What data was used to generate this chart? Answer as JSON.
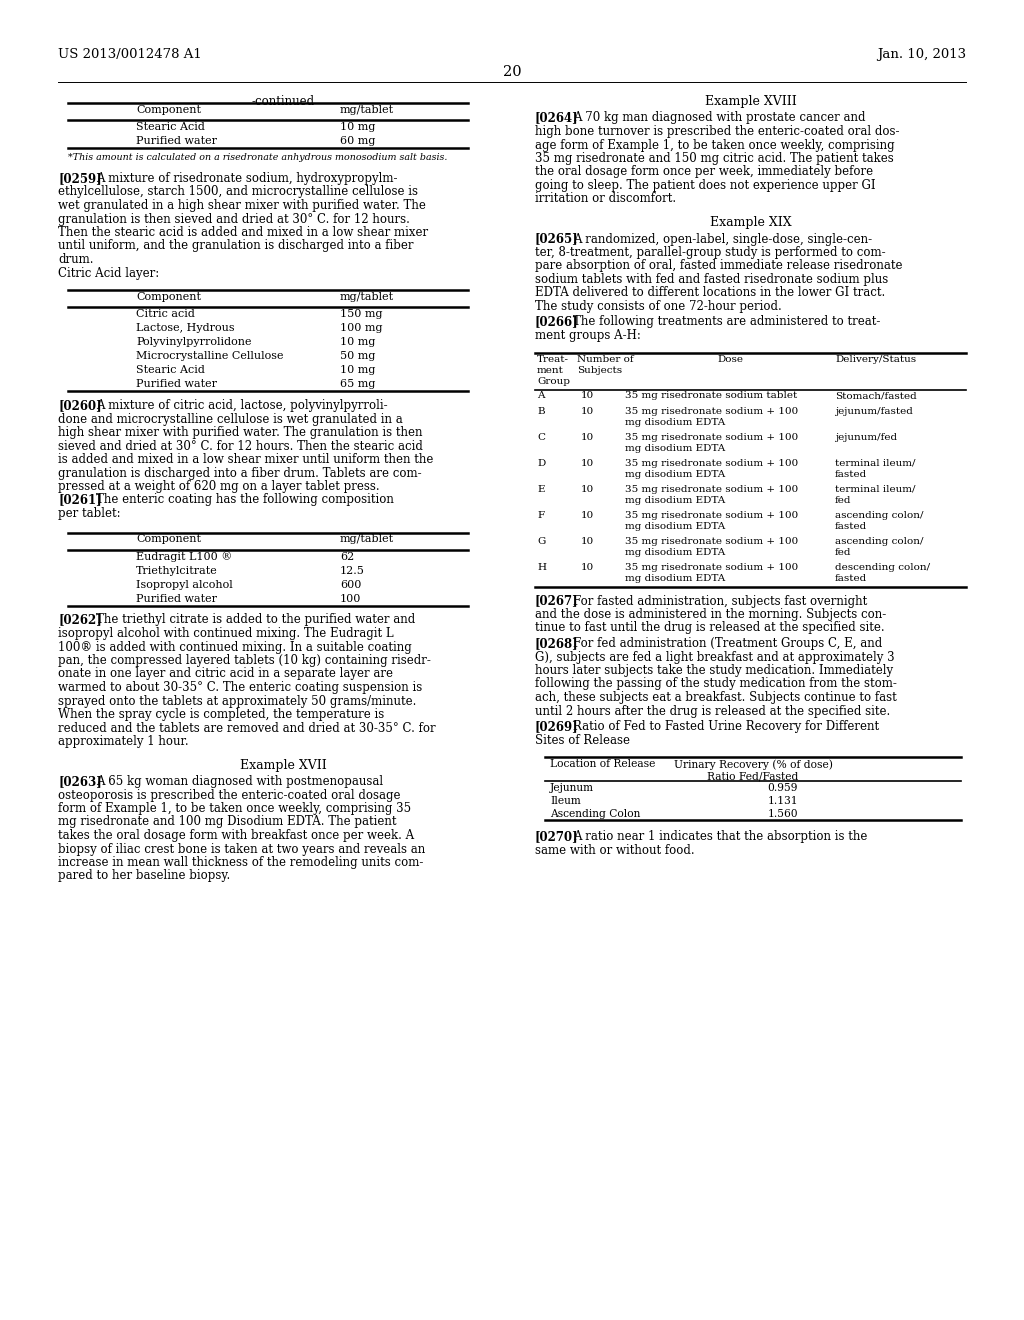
{
  "bg_color": "#ffffff",
  "header_left": "US 2013/0012478 A1",
  "header_right": "Jan. 10, 2013",
  "page_number": "20",
  "left_col": {
    "continued_label": "-continued",
    "table1": {
      "headers": [
        "Component",
        "mg/tablet"
      ],
      "rows": [
        [
          "Stearic Acid",
          "10 mg"
        ],
        [
          "Purified water",
          "60 mg"
        ]
      ],
      "footnote": "*This amount is calculated on a risedronate anhydrous monosodium salt basis."
    },
    "table2": {
      "headers": [
        "Component",
        "mg/tablet"
      ],
      "rows": [
        [
          "Citric acid",
          "150 mg"
        ],
        [
          "Lactose, Hydrous",
          "100 mg"
        ],
        [
          "Polyvinylpyrrolidone",
          "10 mg"
        ],
        [
          "Microcrystalline Cellulose",
          "50 mg"
        ],
        [
          "Stearic Acid",
          "10 mg"
        ],
        [
          "Purified water",
          "65 mg"
        ]
      ]
    },
    "table3": {
      "headers": [
        "Component",
        "mg/tablet"
      ],
      "rows": [
        [
          "Eudragit L100 ®",
          "62"
        ],
        [
          "Triethylcitrate",
          "12.5"
        ],
        [
          "Isopropyl alcohol",
          "600"
        ],
        [
          "Purified water",
          "100"
        ]
      ]
    },
    "example17_title": "Example XVII"
  },
  "right_col": {
    "example18_title": "Example XVIII",
    "example19_title": "Example XIX",
    "table4": {
      "rows": [
        [
          "A",
          "10",
          "35 mg risedronate sodium tablet",
          "Stomach/fasted"
        ],
        [
          "B",
          "10",
          "35 mg risedronate sodium + 100\nmg disodium EDTA",
          "jejunum/fasted"
        ],
        [
          "C",
          "10",
          "35 mg risedronate sodium + 100\nmg disodium EDTA",
          "jejunum/fed"
        ],
        [
          "D",
          "10",
          "35 mg risedronate sodium + 100\nmg disodium EDTA",
          "terminal ileum/\nfasted"
        ],
        [
          "E",
          "10",
          "35 mg risedronate sodium + 100\nmg disodium EDTA",
          "terminal ileum/\nfed"
        ],
        [
          "F",
          "10",
          "35 mg risedronate sodium + 100\nmg disodium EDTA",
          "ascending colon/\nfasted"
        ],
        [
          "G",
          "10",
          "35 mg risedronate sodium + 100\nmg disodium EDTA",
          "ascending colon/\nfed"
        ],
        [
          "H",
          "10",
          "35 mg risedronate sodium + 100\nmg disodium EDTA",
          "descending colon/\nfasted"
        ]
      ]
    },
    "table5": {
      "rows": [
        [
          "Jejunum",
          "0.959"
        ],
        [
          "Ileum",
          "1.131"
        ],
        [
          "Ascending Colon",
          "1.560"
        ]
      ]
    }
  }
}
